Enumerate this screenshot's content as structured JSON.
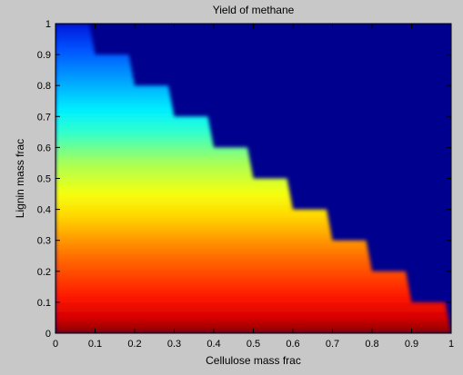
{
  "colors": {
    "figure_background": "#c8c8c8",
    "zero_region": "#00008f",
    "axis": "#000000",
    "colormap": [
      "#000090",
      "#0000ff",
      "#0080ff",
      "#00ffff",
      "#80ff80",
      "#ffff00",
      "#ff8000",
      "#ff0000",
      "#800000"
    ]
  },
  "chart_data": {
    "type": "heatmap",
    "title": "Yield of methane",
    "xlabel": "Cellulose mass frac",
    "ylabel": "Lignin mass frac",
    "xlim": [
      0,
      1
    ],
    "ylim": [
      0,
      1
    ],
    "x_ticks": [
      "0",
      "0.1",
      "0.2",
      "0.3",
      "0.4",
      "0.5",
      "0.6",
      "0.7",
      "0.8",
      "0.9",
      "1"
    ],
    "y_ticks": [
      "0",
      "0.1",
      "0.2",
      "0.3",
      "0.4",
      "0.5",
      "0.6",
      "0.7",
      "0.8",
      "0.9",
      "1"
    ],
    "colormap": "jet",
    "shading": "interp",
    "grid": false,
    "legend": "none",
    "valid_region": "cellulose mass frac + lignin mass frac <= 1",
    "color_gradient_direction": "yield is highest at lignin = 0 and decreases with increasing lignin mass frac",
    "color_at_lignin": [
      {
        "lignin": 0.0,
        "color": "dark red"
      },
      {
        "lignin": 0.15,
        "color": "red"
      },
      {
        "lignin": 0.3,
        "color": "orange"
      },
      {
        "lignin": 0.4,
        "color": "yellow"
      },
      {
        "lignin": 0.55,
        "color": "light green"
      },
      {
        "lignin": 0.7,
        "color": "cyan"
      },
      {
        "lignin": 0.85,
        "color": "light blue"
      },
      {
        "lignin": 1.0,
        "color": "blue"
      }
    ]
  }
}
